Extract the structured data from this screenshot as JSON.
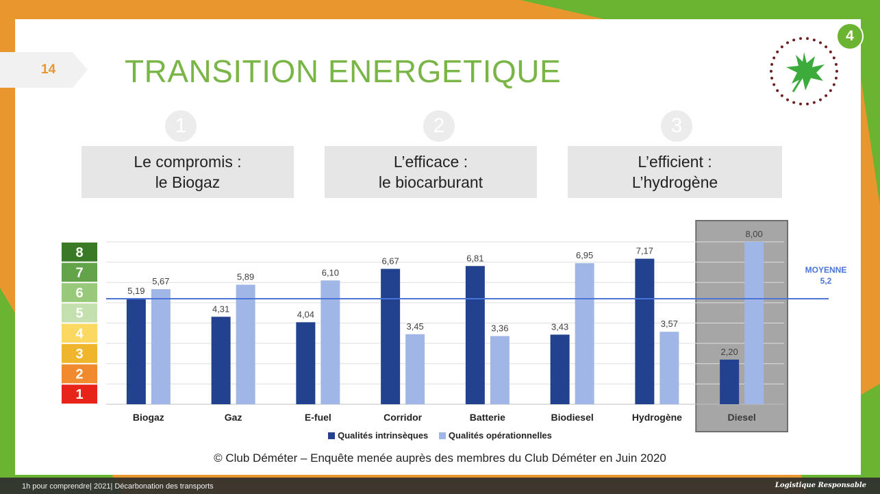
{
  "slide": {
    "page_number": "14",
    "title": "TRANSITION ENERGETIQUE",
    "badge": "4",
    "colors": {
      "orange": "#e8962e",
      "green": "#6bb431",
      "title_green": "#7ab547"
    }
  },
  "steps": [
    {
      "number": "1",
      "line1": "Le compromis :",
      "line2": "le Biogaz"
    },
    {
      "number": "2",
      "line1": "L’efficace :",
      "line2": "le biocarburant"
    },
    {
      "number": "3",
      "line1": "L’efficient :",
      "line2": "L’hydrogène"
    }
  ],
  "scale": {
    "levels": [
      "1",
      "2",
      "3",
      "4",
      "5",
      "6",
      "7",
      "8"
    ],
    "colors": [
      "#e8231a",
      "#ef8a2f",
      "#efb52c",
      "#fbd862",
      "#c3e0ae",
      "#98c97a",
      "#63a34a",
      "#3a7a26"
    ]
  },
  "chart_data": {
    "type": "bar",
    "categories": [
      "Biogaz",
      "Gaz",
      "E-fuel",
      "Corridor",
      "Batterie",
      "Biodiesel",
      "Hydrogène",
      "Diesel"
    ],
    "series": [
      {
        "name": "Qualités intrinsèques",
        "color": "#22418f",
        "values": [
          5.19,
          4.31,
          4.04,
          6.67,
          6.81,
          3.43,
          7.17,
          2.2
        ],
        "labels": [
          "5,19",
          "4,31",
          "4,04",
          "6,67",
          "6,81",
          "3,43",
          "7,17",
          "2,20"
        ]
      },
      {
        "name": "Qualités opérationnelles",
        "color": "#a0b6e6",
        "values": [
          5.67,
          5.89,
          6.1,
          3.45,
          3.36,
          6.95,
          3.57,
          8.0
        ],
        "labels": [
          "5,67",
          "5,89",
          "6,10",
          "3,45",
          "3,36",
          "6,95",
          "3,57",
          "8,00"
        ]
      }
    ],
    "ylim": [
      0,
      8
    ],
    "grid": true,
    "highlighted_category": "Diesel",
    "reference_line": {
      "value": 5.2,
      "label_line1": "MOYENNE",
      "label_line2": "5,2",
      "color": "#4a74d6"
    },
    "legend_position": "bottom"
  },
  "source": "© Club Déméter – Enquête menée auprès des membres du Club Déméter en Juin 2020",
  "footer": {
    "left": "1h pour comprendre| 2021| Décarbonation des transports",
    "right": "Logistique Responsable"
  }
}
